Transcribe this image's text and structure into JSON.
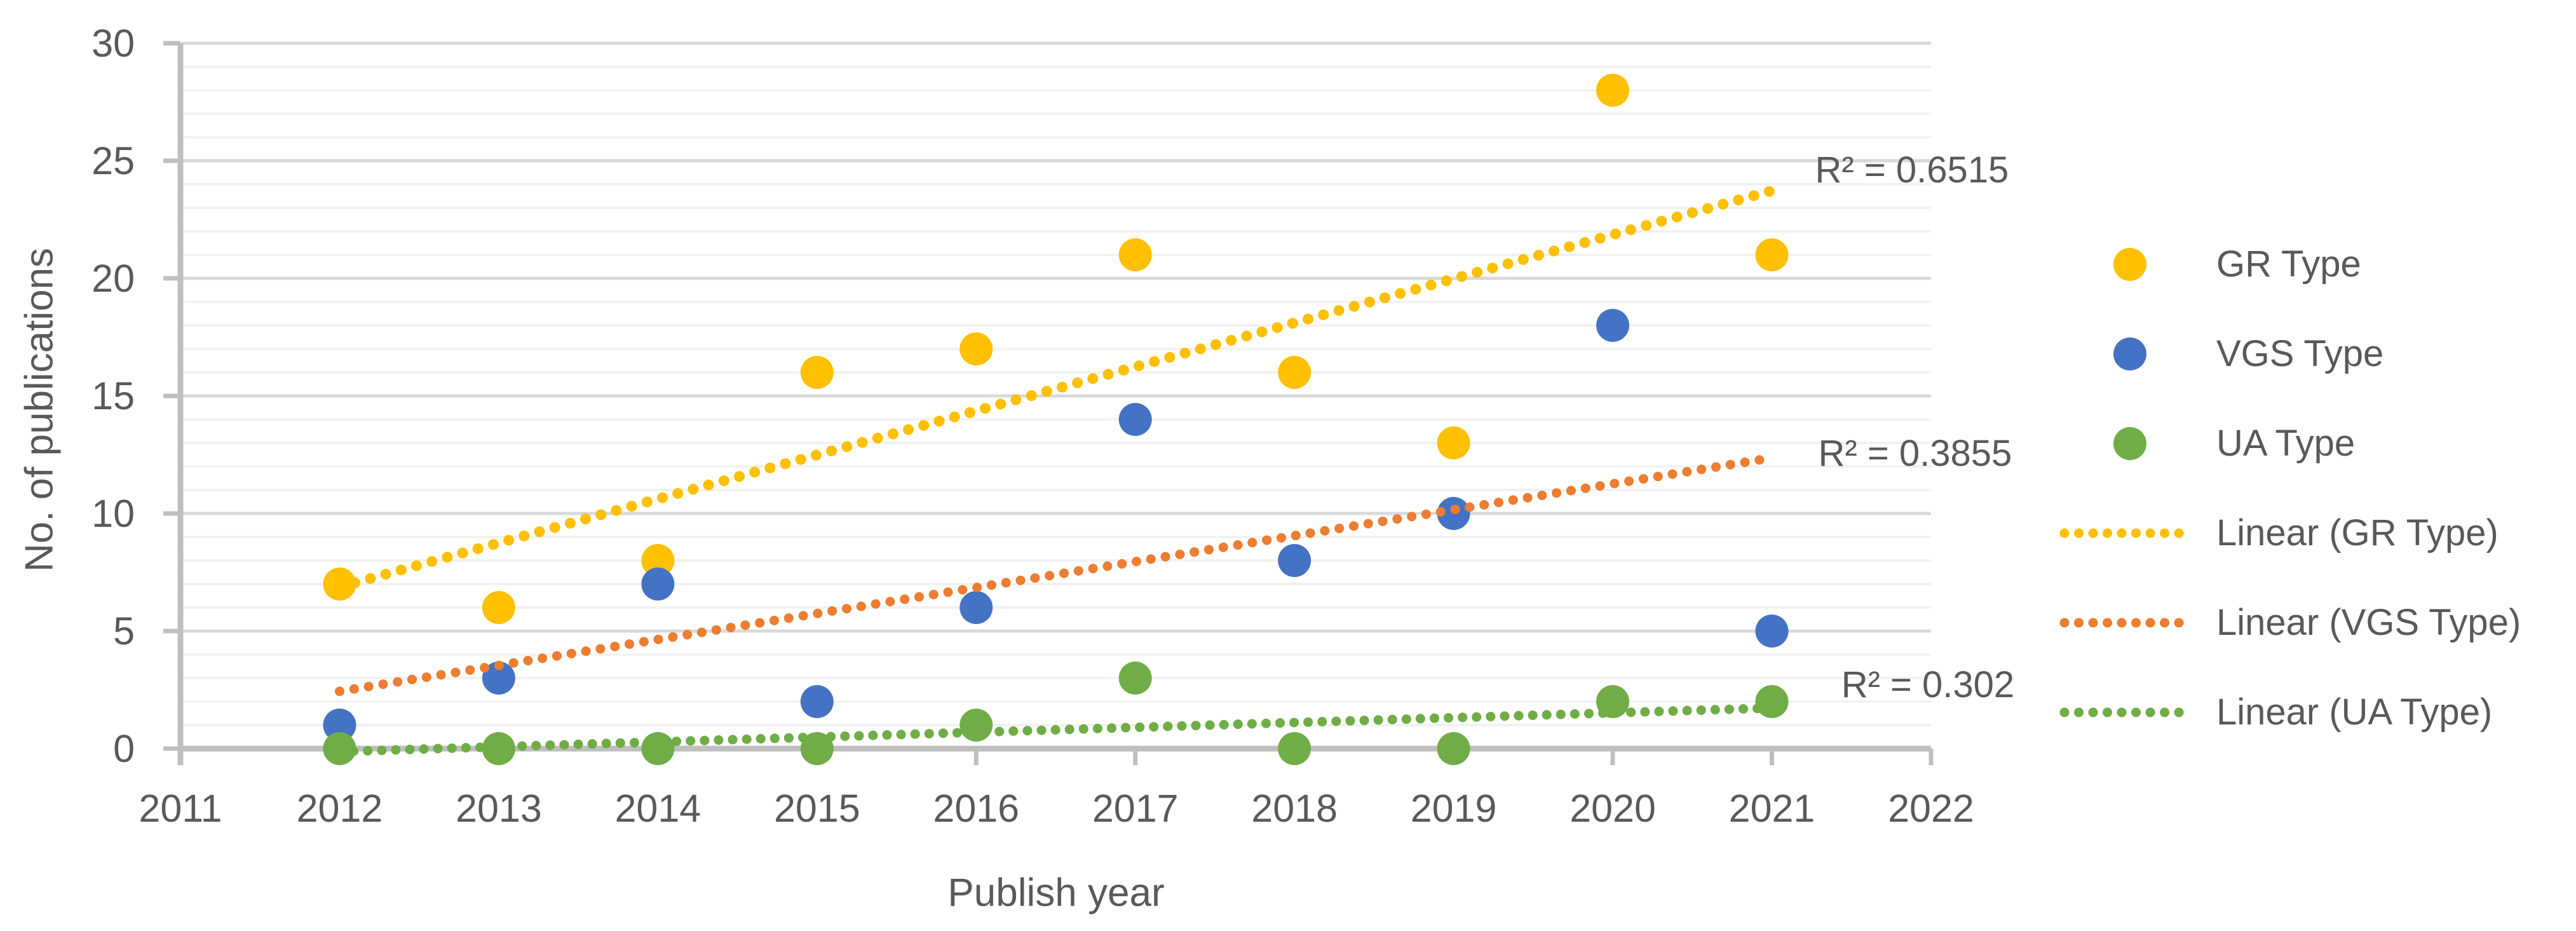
{
  "chart_data": {
    "type": "scatter",
    "xlabel": "Publish year",
    "ylabel": "No. of publications",
    "x": [
      2012,
      2013,
      2014,
      2015,
      2016,
      2017,
      2018,
      2019,
      2020,
      2021
    ],
    "xlim": [
      2011,
      2022
    ],
    "ylim": [
      0,
      30
    ],
    "y_major_step": 5,
    "y_minor_step": 1,
    "grid": "horizontal-minor-and-major",
    "legend_position": "right",
    "x_axis_ticks": [
      "2011",
      "2012",
      "2013",
      "2014",
      "2015",
      "2016",
      "2017",
      "2018",
      "2019",
      "2020",
      "2021",
      "2022"
    ],
    "y_axis_ticks": [
      "0",
      "5",
      "10",
      "15",
      "20",
      "25",
      "30"
    ],
    "series": [
      {
        "name": "GR Type",
        "color": "#FFC000",
        "values": [
          7,
          6,
          8,
          16,
          17,
          21,
          16,
          13,
          28,
          21
        ],
        "trendline": {
          "label": "Linear (GR Type)",
          "color": "#FFC000",
          "dot_size": 17,
          "dot_pitch": 25,
          "r2_label": {
            "text": "R² = 0.6515",
            "x": 2021.88,
            "y": 24.62
          }
        }
      },
      {
        "name": "VGS Type",
        "color": "#4472C4",
        "values": [
          1,
          3,
          7,
          2,
          6,
          14,
          8,
          10,
          18,
          5
        ],
        "trendline": {
          "label": "Linear (VGS Type)",
          "color": "#ED7D31",
          "dot_size": 15,
          "dot_pitch": 23,
          "r2_label": {
            "text": "R² = 0.3855",
            "x": 2021.9,
            "y": 12.57
          }
        }
      },
      {
        "name": "UA Type",
        "color": "#70AD47",
        "values": [
          0,
          0,
          0,
          0,
          1,
          3,
          0,
          0,
          2,
          2
        ],
        "trendline": {
          "label": "Linear (UA Type)",
          "color": "#70AD47",
          "dot_size": 15,
          "dot_pitch": 22,
          "r2_label": {
            "text": "R² = 0.302",
            "x": 2021.98,
            "y": 2.73
          }
        }
      }
    ]
  },
  "legend": {
    "items": [
      {
        "label": "GR Type",
        "swatch": "dot",
        "color": "#FFC000"
      },
      {
        "label": "VGS Type",
        "swatch": "dot",
        "color": "#4472C4"
      },
      {
        "label": "UA Type",
        "swatch": "dot",
        "color": "#70AD47"
      },
      {
        "label": "Linear (GR Type)",
        "swatch": "dotted-line",
        "color": "#FFC000"
      },
      {
        "label": "Linear (VGS Type)",
        "swatch": "dotted-line",
        "color": "#ED7D31"
      },
      {
        "label": "Linear (UA Type)",
        "swatch": "dotted-line",
        "color": "#70AD47"
      }
    ]
  },
  "style_colors": {
    "text": "#595959",
    "axis_line": "#BFBFBF",
    "major_gridline": "#D9D9D9",
    "minor_gridline": "#F2F2F2"
  }
}
